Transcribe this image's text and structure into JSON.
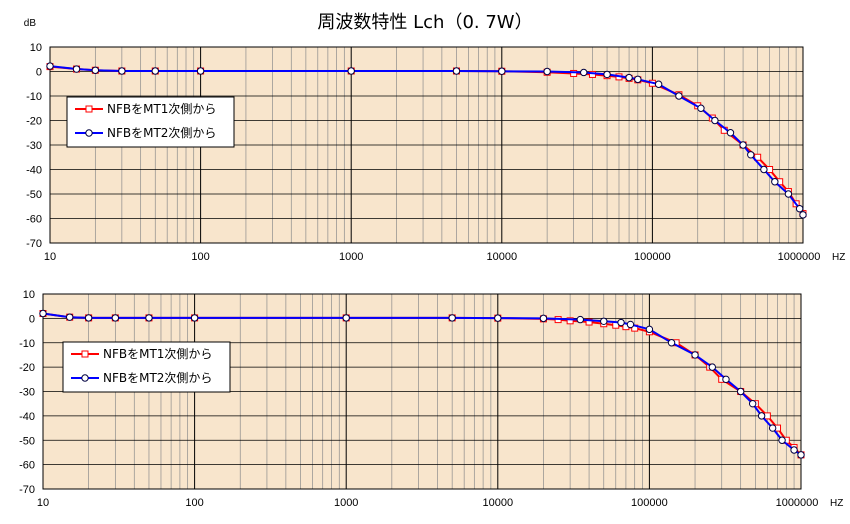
{
  "title": "周波数特性 Lch（0. 7W）",
  "colors": {
    "plot_bg": "#f8e5cc",
    "grid": "#8c8c8c",
    "series1": "#ff0000",
    "series2": "#0000ff"
  },
  "chart_data": [
    {
      "type": "line",
      "x_scale": "log",
      "xlim": [
        10,
        1000000
      ],
      "ylim": [
        -70,
        10
      ],
      "x_tick_labels": [
        "10",
        "100",
        "1000",
        "10000",
        "100000",
        "1000000"
      ],
      "y_tick_labels": [
        "10",
        "0",
        "-10",
        "-20",
        "-30",
        "-40",
        "-50",
        "-60",
        "-70"
      ],
      "ylabel": "dB",
      "xlabel": "HZ",
      "legend_position": "left",
      "series": [
        {
          "name": "NFBをMT1次側から",
          "color": "#ff0000",
          "marker": "square",
          "x": [
            10,
            15,
            20,
            30,
            50,
            100,
            1000,
            5000,
            10000,
            20000,
            30000,
            40000,
            50000,
            60000,
            70000,
            80000,
            100000,
            150000,
            200000,
            250000,
            300000,
            400000,
            500000,
            600000,
            700000,
            800000,
            900000,
            1000000
          ],
          "y": [
            2,
            1,
            0.5,
            0.2,
            0.2,
            0.2,
            0.2,
            0.2,
            0.1,
            -0.3,
            -0.8,
            -1.2,
            -1.7,
            -2.2,
            -2.8,
            -3.4,
            -4.8,
            -9.5,
            -14,
            -19,
            -24,
            -30,
            -35,
            -40,
            -45,
            -49,
            -54,
            -58
          ]
        },
        {
          "name": "NFBをMT2次側から",
          "color": "#0000ff",
          "marker": "circle",
          "x": [
            10,
            15,
            20,
            30,
            50,
            100,
            1000,
            5000,
            10000,
            20000,
            35000,
            50000,
            70000,
            80000,
            110000,
            150000,
            210000,
            260000,
            330000,
            400000,
            450000,
            550000,
            650000,
            800000,
            950000,
            1000000
          ],
          "y": [
            2.2,
            1,
            0.5,
            0.2,
            0.2,
            0.2,
            0.2,
            0.2,
            0.1,
            0,
            -0.4,
            -1.2,
            -2.5,
            -3.2,
            -5.2,
            -10,
            -15,
            -20,
            -25,
            -30,
            -34,
            -40,
            -45,
            -50,
            -56,
            -58.5
          ]
        }
      ]
    },
    {
      "type": "line",
      "x_scale": "log",
      "xlim": [
        10,
        1000000
      ],
      "ylim": [
        -70,
        10
      ],
      "x_tick_labels": [
        "10",
        "100",
        "1000",
        "10000",
        "100000",
        "1000000"
      ],
      "y_tick_labels": [
        "10",
        "0",
        "-10",
        "-20",
        "-30",
        "-40",
        "-50",
        "-60",
        "-70"
      ],
      "xlabel": "HZ",
      "legend_position": "left",
      "series": [
        {
          "name": "NFBをMT1次側から",
          "color": "#ff0000",
          "marker": "square",
          "x": [
            10,
            15,
            20,
            30,
            50,
            100,
            1000,
            5000,
            10000,
            20000,
            25000,
            30000,
            40000,
            50000,
            60000,
            70000,
            80000,
            100000,
            150000,
            200000,
            250000,
            300000,
            400000,
            500000,
            600000,
            700000,
            800000,
            900000,
            1000000
          ],
          "y": [
            2,
            0.5,
            0.2,
            0.2,
            0.2,
            0.2,
            0.2,
            0.2,
            0.1,
            -0.2,
            -0.5,
            -1,
            -1.5,
            -2.2,
            -2.8,
            -3.4,
            -4,
            -5.5,
            -10,
            -15,
            -20,
            -25,
            -30,
            -35,
            -40,
            -45,
            -50,
            -53,
            -56
          ]
        },
        {
          "name": "NFBをMT2次側から",
          "color": "#0000ff",
          "marker": "circle",
          "x": [
            10,
            15,
            20,
            30,
            50,
            100,
            1000,
            5000,
            10000,
            20000,
            35000,
            50000,
            65000,
            75000,
            100000,
            140000,
            200000,
            260000,
            320000,
            400000,
            480000,
            550000,
            650000,
            750000,
            900000,
            1000000
          ],
          "y": [
            2,
            0.5,
            0.2,
            0.2,
            0.2,
            0.2,
            0.2,
            0.2,
            0.1,
            0,
            -0.5,
            -1.2,
            -1.7,
            -2.5,
            -4.5,
            -10,
            -15,
            -20,
            -25,
            -30,
            -35,
            -40,
            -45,
            -50,
            -54,
            -56
          ]
        }
      ]
    }
  ]
}
